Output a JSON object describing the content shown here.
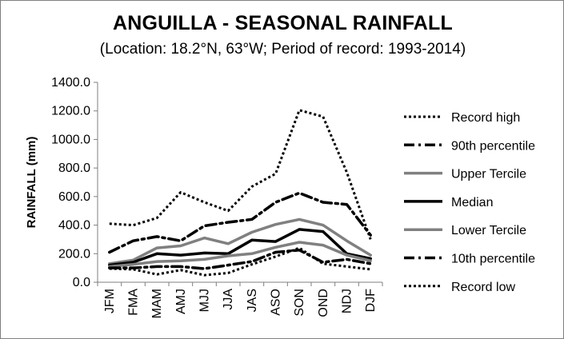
{
  "chart_data": {
    "type": "line",
    "title": "ANGUILLA - SEASONAL RAINFALL",
    "subtitle": "(Location: 18.2°N, 63°W; Period of record: 1993-2014)",
    "xlabel": "",
    "ylabel": "RAINFALL (mm)",
    "ylim": [
      0,
      1400
    ],
    "ytick_step": 200,
    "ytick_decimals": 1,
    "grid": false,
    "legend_position": "right",
    "categories": [
      "JFM",
      "FMA",
      "MAM",
      "AMJ",
      "MJJ",
      "JJA",
      "JAS",
      "ASO",
      "SON",
      "OND",
      "NDJ",
      "DJF"
    ],
    "series": [
      {
        "name": "Record high",
        "style": "dotted",
        "color": "#000000",
        "values": [
          410,
          400,
          450,
          630,
          560,
          500,
          670,
          760,
          1205,
          1160,
          770,
          300
        ]
      },
      {
        "name": "90th percentile",
        "style": "dashdot",
        "color": "#000000",
        "values": [
          210,
          290,
          320,
          290,
          395,
          420,
          440,
          560,
          625,
          560,
          545,
          330
        ]
      },
      {
        "name": "Upper Tercile",
        "style": "solid",
        "color": "#808080",
        "values": [
          130,
          155,
          240,
          255,
          310,
          270,
          350,
          405,
          440,
          400,
          290,
          190
        ]
      },
      {
        "name": "Median",
        "style": "solid",
        "color": "#000000",
        "values": [
          120,
          140,
          200,
          190,
          205,
          200,
          295,
          285,
          370,
          355,
          200,
          165
        ]
      },
      {
        "name": "Lower Tercile",
        "style": "solid",
        "color": "#808080",
        "values": [
          110,
          125,
          145,
          150,
          160,
          185,
          200,
          245,
          280,
          260,
          190,
          150
        ]
      },
      {
        "name": "10th percentile",
        "style": "dashdot",
        "color": "#000000",
        "values": [
          100,
          100,
          110,
          110,
          95,
          120,
          145,
          210,
          225,
          140,
          160,
          130
        ]
      },
      {
        "name": "Record low",
        "style": "dotted",
        "color": "#000000",
        "values": [
          95,
          90,
          55,
          85,
          50,
          65,
          125,
          180,
          240,
          130,
          110,
          90
        ]
      }
    ]
  }
}
